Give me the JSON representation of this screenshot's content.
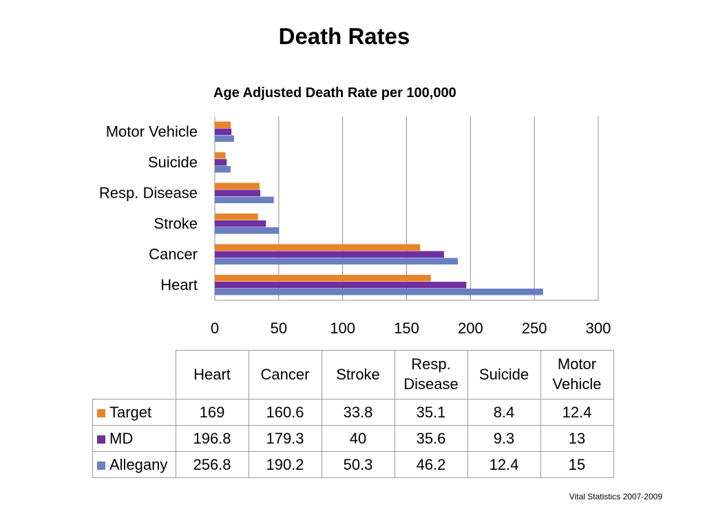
{
  "slide": {
    "title": "Death Rates",
    "source": "Vital Statistics 2007-2009"
  },
  "colors": {
    "Target": "#E8832A",
    "MD": "#7030A0",
    "Allegany": "#6A7FC2",
    "grid": "#8c8c8c"
  },
  "chart_data": {
    "type": "bar",
    "orientation": "horizontal",
    "title": "Age Adjusted Death Rate per 100,000",
    "categories": [
      "Heart",
      "Cancer",
      "Stroke",
      "Resp.   Disease",
      "Suicide",
      "Motor Vehicle"
    ],
    "series": [
      {
        "name": "Target",
        "values": [
          169,
          160.6,
          33.8,
          35.1,
          8.4,
          12.4
        ]
      },
      {
        "name": "MD",
        "values": [
          196.8,
          179.3,
          40,
          35.6,
          9.3,
          13
        ]
      },
      {
        "name": "Allegany",
        "values": [
          256.8,
          190.2,
          50.3,
          46.2,
          12.4,
          15
        ]
      }
    ],
    "xlim": [
      0,
      300
    ],
    "xticks": [
      "0",
      "50",
      "100",
      "150",
      "200",
      "250",
      "300"
    ],
    "grid": "vertical",
    "legend": "in data table"
  },
  "table": {
    "headers": [
      "Heart",
      "Cancer",
      "Stroke",
      "Resp.\nDisease",
      "Suicide",
      "Motor\nVehicle"
    ],
    "rows": [
      {
        "label": "Target",
        "cells": [
          "169",
          "160.6",
          "33.8",
          "35.1",
          "8.4",
          "12.4"
        ]
      },
      {
        "label": "MD",
        "cells": [
          "196.8",
          "179.3",
          "40",
          "35.6",
          "9.3",
          "13"
        ]
      },
      {
        "label": "Allegany",
        "cells": [
          "256.8",
          "190.2",
          "50.3",
          "46.2",
          "12.4",
          "15"
        ]
      }
    ]
  }
}
